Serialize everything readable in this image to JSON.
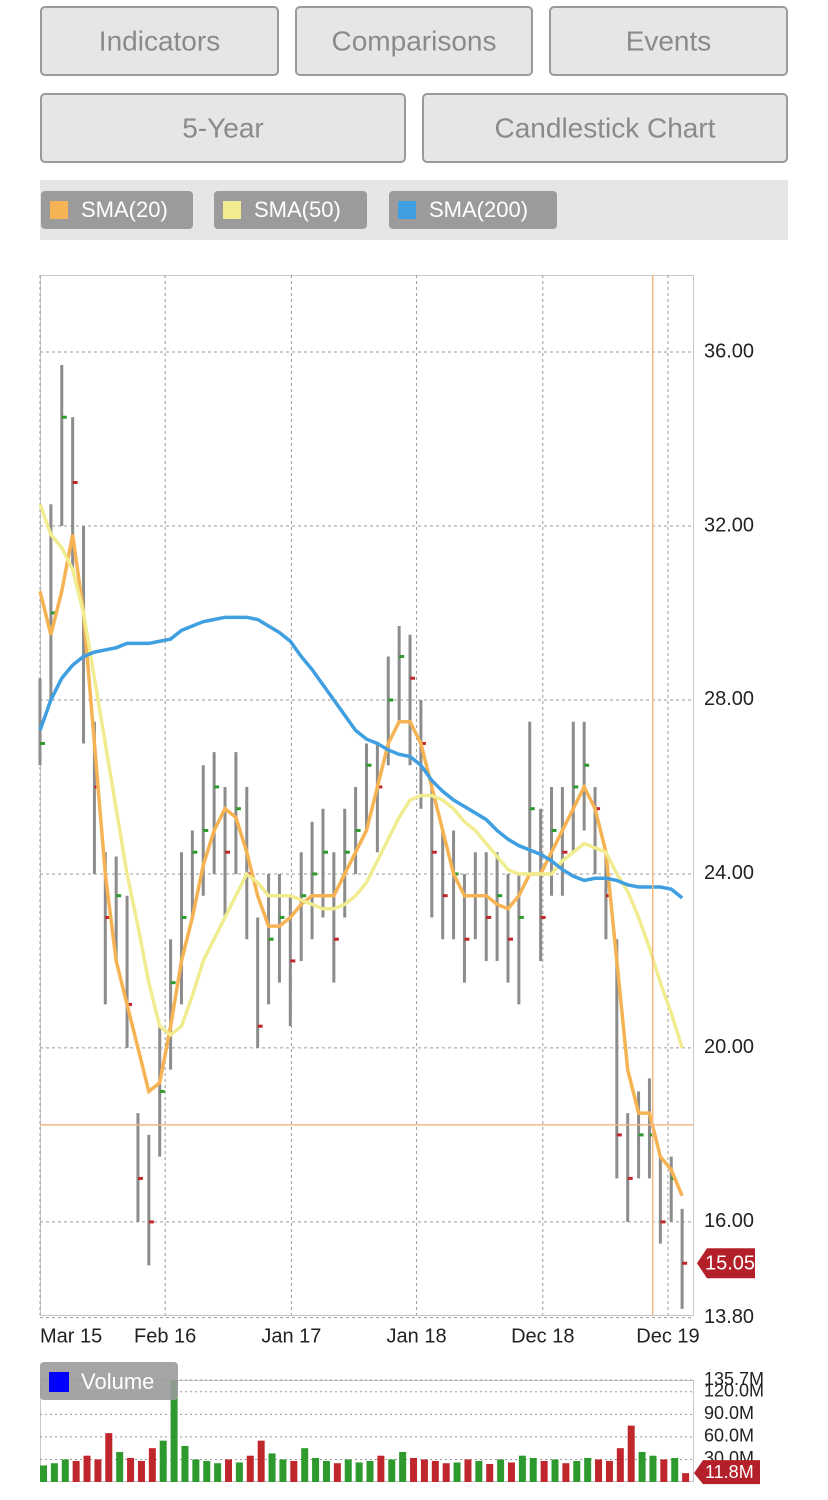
{
  "toolbar": {
    "buttons": [
      "Indicators",
      "Comparisons",
      "Events",
      "5-Year",
      "Candlestick Chart"
    ]
  },
  "chart_data": [
    {
      "type": "hlc",
      "x": [
        0,
        1,
        2,
        3,
        4,
        5,
        6,
        7,
        8,
        9,
        10,
        11,
        12,
        13,
        14,
        15,
        16,
        17,
        18,
        19,
        20,
        21,
        22,
        23,
        24,
        25,
        26,
        27,
        28,
        29,
        30,
        31,
        32,
        33,
        34,
        35,
        36,
        37,
        38,
        39,
        40,
        41,
        42,
        43,
        44,
        45,
        46,
        47,
        48,
        49,
        50,
        51,
        52,
        53,
        54,
        55,
        56,
        57,
        58,
        59
      ],
      "high": [
        28.5,
        32.5,
        35.7,
        34.5,
        32,
        27.5,
        24.5,
        24.4,
        23.5,
        18.5,
        18,
        20.5,
        22.5,
        24.5,
        25,
        26.5,
        26.8,
        26,
        26.8,
        26,
        23,
        24,
        24,
        23.5,
        24.5,
        25.2,
        25.5,
        24.5,
        25.5,
        26,
        27,
        27,
        29,
        29.7,
        29.5,
        28,
        26,
        25,
        25,
        24,
        24.5,
        24.5,
        24.5,
        24,
        24,
        27.5,
        25.5,
        26,
        26,
        27.5,
        27.5,
        26,
        24.5,
        22.5,
        18.5,
        19,
        19.3,
        17.5,
        17.5,
        16.3
      ],
      "low": [
        26.5,
        28,
        32,
        31,
        27,
        24,
        21,
        22,
        20,
        16,
        15,
        17.5,
        19.5,
        21,
        23,
        23.5,
        24,
        23,
        24,
        22.5,
        20,
        21,
        21.5,
        20.5,
        22,
        22.5,
        23,
        21.5,
        23,
        24,
        25,
        24.5,
        26.5,
        27.5,
        26.5,
        25.5,
        23,
        22.5,
        22.5,
        21.5,
        22.5,
        22,
        22,
        21.5,
        21,
        24,
        22,
        23.5,
        23.5,
        24.5,
        25,
        24,
        22.5,
        17,
        16,
        17,
        17,
        15.5,
        16,
        14
      ],
      "close": [
        27,
        30,
        34.5,
        33,
        29,
        26,
        23,
        23.5,
        21,
        17,
        16,
        19,
        21.5,
        23,
        24.5,
        25,
        26,
        24.5,
        25.5,
        24,
        20.5,
        22.5,
        23,
        22,
        23.5,
        24,
        24.5,
        22.5,
        24.5,
        25,
        26.5,
        26,
        28,
        29,
        28.5,
        27,
        24.5,
        23.5,
        24,
        22.5,
        23.5,
        23,
        23.5,
        22.5,
        23,
        25.5,
        23,
        25,
        24.5,
        26,
        26.5,
        25.5,
        23.5,
        18,
        17,
        18,
        18,
        16,
        17,
        15.05
      ],
      "up_color": "#2e9a2e",
      "down_color": "#c0272d",
      "wick_color": "#8c8c8c",
      "series": [
        {
          "name": "SMA(20)",
          "color": "#f5b353",
          "values": [
            30.5,
            29.5,
            30.5,
            31.8,
            30,
            27,
            24,
            22,
            21,
            20,
            19,
            19.2,
            20.5,
            22,
            23,
            24.2,
            25,
            25.5,
            25.3,
            24.5,
            23.5,
            22.8,
            22.8,
            23,
            23.3,
            23.5,
            23.5,
            23.5,
            24,
            24.5,
            25,
            26,
            27,
            27.5,
            27.5,
            27,
            26,
            25,
            24,
            23.5,
            23.5,
            23.5,
            23.3,
            23.2,
            23.5,
            24,
            24,
            24.5,
            25,
            25.5,
            26,
            25.5,
            24.5,
            22,
            19.5,
            18.5,
            18.5,
            17.5,
            17.2,
            16.6
          ]
        },
        {
          "name": "SMA(50)",
          "color": "#f1ec8f",
          "values": [
            32.5,
            31.8,
            31.5,
            31,
            30,
            28.5,
            27,
            25.5,
            24,
            22.8,
            21.5,
            20.5,
            20.3,
            20.5,
            21.2,
            22,
            22.5,
            23,
            23.5,
            24,
            23.8,
            23.5,
            23.5,
            23.5,
            23.4,
            23.3,
            23.2,
            23.2,
            23.3,
            23.5,
            23.8,
            24.3,
            24.8,
            25.3,
            25.7,
            25.8,
            25.8,
            25.7,
            25.5,
            25.2,
            25,
            24.7,
            24.4,
            24.1,
            24,
            24,
            24,
            24,
            24.3,
            24.5,
            24.7,
            24.6,
            24.5,
            24,
            23.6,
            23,
            22.3,
            21.5,
            20.8,
            20
          ]
        },
        {
          "name": "SMA(200)",
          "color": "#3f9fe0",
          "values": [
            27.3,
            28,
            28.5,
            28.8,
            29,
            29.1,
            29.15,
            29.2,
            29.3,
            29.3,
            29.3,
            29.35,
            29.4,
            29.6,
            29.7,
            29.8,
            29.85,
            29.9,
            29.9,
            29.9,
            29.85,
            29.7,
            29.55,
            29.35,
            29,
            28.7,
            28.35,
            28,
            27.65,
            27.3,
            27.1,
            27,
            26.85,
            26.75,
            26.7,
            26.5,
            26.15,
            25.9,
            25.7,
            25.55,
            25.4,
            25.25,
            25,
            24.8,
            24.65,
            24.55,
            24.45,
            24.3,
            24.1,
            23.95,
            23.85,
            23.9,
            23.9,
            23.85,
            23.75,
            23.7,
            23.7,
            23.7,
            23.65,
            23.45
          ]
        }
      ],
      "xlim": [
        0,
        60
      ],
      "xticks": [
        {
          "value": 0,
          "label": "Mar 15"
        },
        {
          "value": 11.5,
          "label": "Feb 16"
        },
        {
          "value": 23.1,
          "label": "Jan 17"
        },
        {
          "value": 34.6,
          "label": "Jan 18"
        },
        {
          "value": 46.2,
          "label": "Dec 18"
        },
        {
          "value": 57.7,
          "label": "Dec 19"
        }
      ],
      "ylim": [
        13.86,
        37.77
      ],
      "yticks": [
        {
          "value": 13.8,
          "label": "13.80"
        },
        {
          "value": 16,
          "label": "16.00"
        },
        {
          "value": 20,
          "label": "20.00"
        },
        {
          "value": 24,
          "label": "24.00"
        },
        {
          "value": 28,
          "label": "28.00"
        },
        {
          "value": 32,
          "label": "32.00"
        },
        {
          "value": 36,
          "label": "36.00"
        }
      ],
      "grid": true,
      "crosshair": {
        "x": 56.3,
        "y": 18.23,
        "color": "#f5b880"
      }
    },
    {
      "type": "bar",
      "x": [
        0,
        1,
        2,
        3,
        4,
        5,
        6,
        7,
        8,
        9,
        10,
        11,
        12,
        13,
        14,
        15,
        16,
        17,
        18,
        19,
        20,
        21,
        22,
        23,
        24,
        25,
        26,
        27,
        28,
        29,
        30,
        31,
        32,
        33,
        34,
        35,
        36,
        37,
        38,
        39,
        40,
        41,
        42,
        43,
        44,
        45,
        46,
        47,
        48,
        49,
        50,
        51,
        52,
        53,
        54,
        55,
        56,
        57,
        58,
        59
      ],
      "series": [
        {
          "name": "Volume",
          "color": "#0000ff",
          "values": [
            22,
            25,
            30,
            28,
            35,
            30,
            65,
            40,
            32,
            28,
            45,
            55,
            135.7,
            48,
            30,
            28,
            25,
            30,
            26,
            35,
            55,
            38,
            30,
            28,
            45,
            32,
            28,
            25,
            30,
            26,
            28,
            35,
            30,
            40,
            32,
            30,
            28,
            25,
            26,
            30,
            28,
            24,
            30,
            26,
            35,
            32,
            28,
            30,
            25,
            28,
            32,
            30,
            28,
            45,
            75,
            40,
            35,
            30,
            32,
            11.8
          ],
          "value_labels": [
            null,
            null,
            null,
            null,
            null,
            null,
            null,
            null,
            null,
            null,
            null,
            null,
            null,
            null,
            null,
            null,
            null,
            null,
            null,
            null,
            null,
            null,
            null,
            null,
            null,
            null,
            null,
            null,
            null,
            null,
            null,
            null,
            null,
            null,
            null,
            null,
            null,
            null,
            null,
            null,
            null,
            null,
            null,
            null,
            null,
            null,
            null,
            null,
            null,
            null,
            null,
            null,
            null,
            null,
            null,
            null,
            null,
            null,
            null,
            "11.8M"
          ]
        }
      ],
      "up_color": "#2e9a2e",
      "down_color": "#c0272d",
      "xlim": [
        0,
        60
      ],
      "ylim": [
        0,
        135.7
      ],
      "yticks": [
        {
          "value": 30,
          "label": "30.0M"
        },
        {
          "value": 60,
          "label": "60.0M"
        },
        {
          "value": 90,
          "label": "90.0M"
        },
        {
          "value": 120,
          "label": "120.0M"
        },
        {
          "value": 135.7,
          "label": "135.7M"
        }
      ],
      "grid": true
    }
  ]
}
